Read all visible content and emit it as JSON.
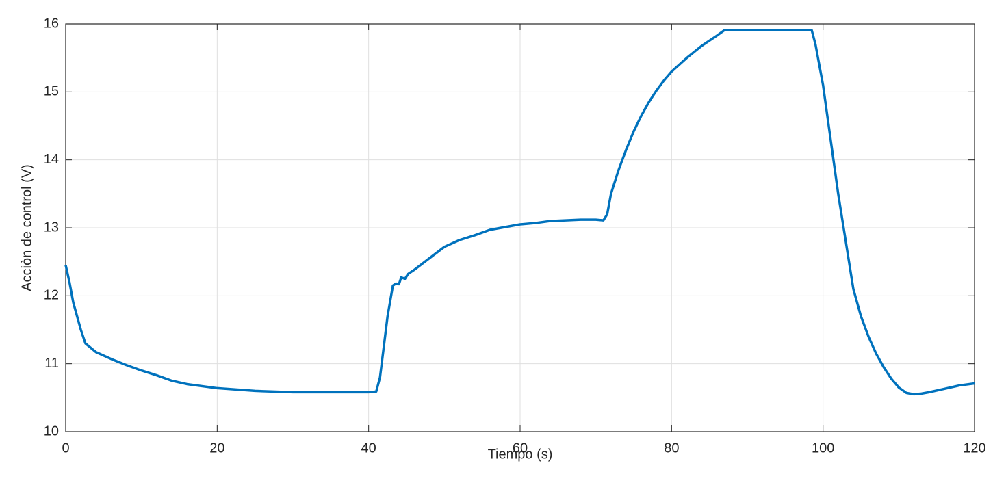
{
  "chart_data": {
    "type": "line",
    "x_label": "Tiempo (s)",
    "y_label": "Acciòn de control (V)",
    "x": [
      0,
      0.5,
      1,
      2,
      2.6,
      4,
      6,
      8,
      10,
      12,
      14,
      16,
      20,
      25,
      30,
      35,
      40,
      41,
      41.5,
      42.5,
      43.2,
      43.6,
      44,
      44.3,
      44.8,
      45.2,
      46,
      48,
      50,
      52,
      54,
      56,
      58,
      60,
      62,
      64,
      66,
      68,
      70,
      71,
      71.5,
      72,
      73,
      74,
      75,
      76,
      77,
      78,
      79,
      80,
      82,
      84,
      86,
      87,
      90,
      95,
      98.5,
      99,
      100,
      101,
      102,
      103,
      104,
      105,
      106,
      107,
      108,
      109,
      110,
      111,
      112,
      113,
      114,
      116,
      118,
      120
    ],
    "values": [
      12.45,
      12.2,
      11.9,
      11.5,
      11.3,
      11.17,
      11.07,
      10.98,
      10.9,
      10.83,
      10.75,
      10.7,
      10.64,
      10.6,
      10.58,
      10.58,
      10.58,
      10.59,
      10.8,
      11.7,
      12.15,
      12.18,
      12.17,
      12.27,
      12.25,
      12.32,
      12.38,
      12.55,
      12.72,
      12.82,
      12.89,
      12.97,
      13.01,
      13.05,
      13.07,
      13.1,
      13.11,
      13.12,
      13.12,
      13.11,
      13.2,
      13.5,
      13.85,
      14.15,
      14.42,
      14.65,
      14.85,
      15.02,
      15.17,
      15.3,
      15.5,
      15.68,
      15.83,
      15.91,
      15.91,
      15.91,
      15.91,
      15.7,
      15.1,
      14.3,
      13.5,
      12.8,
      12.1,
      11.7,
      11.4,
      11.15,
      10.95,
      10.78,
      10.65,
      10.57,
      10.55,
      10.56,
      10.58,
      10.63,
      10.68,
      10.71
    ],
    "color": "#0072bd",
    "xlim": [
      0,
      120
    ],
    "xticks": [
      0,
      20,
      40,
      60,
      80,
      100,
      120
    ],
    "ylim": [
      10,
      16
    ],
    "yticks": [
      10,
      11,
      12,
      13,
      14,
      15,
      16
    ],
    "grid": true
  }
}
